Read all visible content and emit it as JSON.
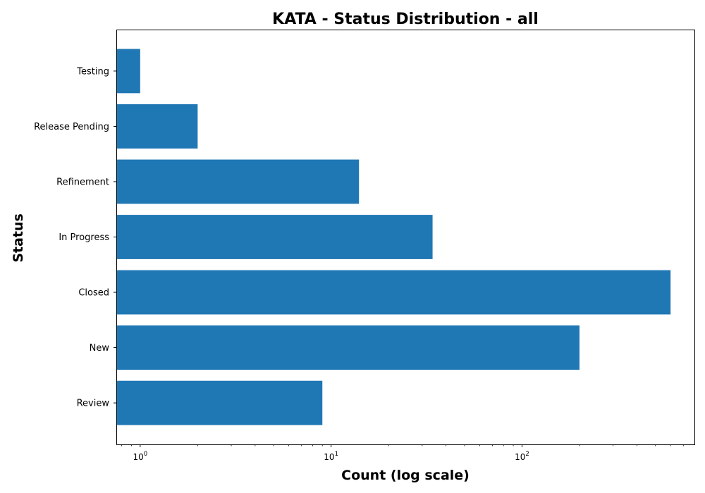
{
  "chart_data": {
    "type": "bar",
    "orientation": "horizontal",
    "title": "KATA - Status Distribution - all",
    "xlabel": "Count (log scale)",
    "ylabel": "Status",
    "x_scale": "log",
    "xlim": [
      0.75,
      800
    ],
    "categories": [
      "Review",
      "New",
      "Closed",
      "In Progress",
      "Refinement",
      "Release Pending",
      "Testing"
    ],
    "values": [
      9,
      200,
      600,
      34,
      14,
      2,
      1
    ],
    "x_ticks": [
      {
        "base": "10",
        "exp": "0",
        "value": 1
      },
      {
        "base": "10",
        "exp": "1",
        "value": 10
      },
      {
        "base": "10",
        "exp": "2",
        "value": 100
      }
    ],
    "bar_color": "#1f77b4",
    "grid": false,
    "legend": "none"
  }
}
